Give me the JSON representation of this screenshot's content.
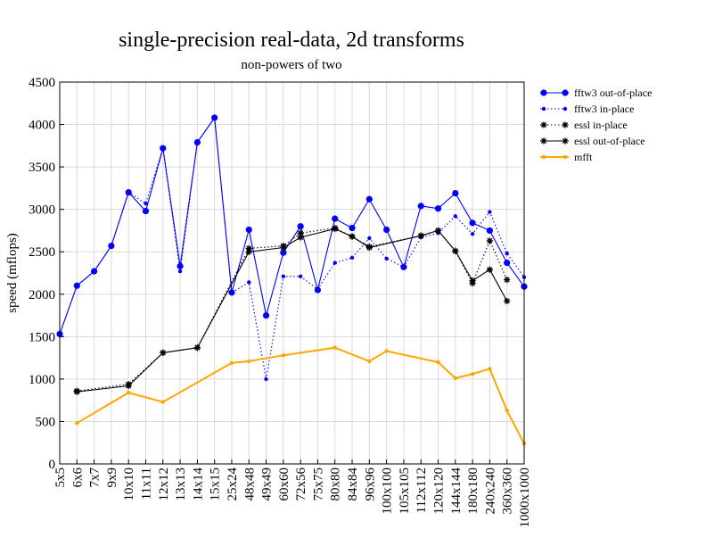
{
  "chart_data": {
    "type": "line",
    "title": "single-precision real-data, 2d transforms",
    "subtitle": "non-powers of two",
    "ylabel": "speed (mflops)",
    "xlabel": "",
    "ylim": [
      0,
      4500
    ],
    "yticks": [
      "0",
      "500",
      "1000",
      "1500",
      "2000",
      "2500",
      "3000",
      "3500",
      "4000",
      "4500"
    ],
    "grid": true,
    "legend_position": "right",
    "categories": [
      "5x5",
      "6x6",
      "7x7",
      "9x9",
      "10x10",
      "11x11",
      "12x12",
      "13x13",
      "14x14",
      "15x15",
      "25x24",
      "48x48",
      "49x49",
      "60x60",
      "72x56",
      "75x75",
      "80x80",
      "84x84",
      "96x96",
      "100x100",
      "105x105",
      "112x112",
      "120x120",
      "144x144",
      "180x180",
      "240x240",
      "360x360",
      "1000x1000"
    ],
    "series": [
      {
        "name": "fftw3 out-of-place",
        "color": "#0000ff",
        "line": "solid",
        "marker": "circle",
        "values": [
          1530,
          2100,
          2270,
          2570,
          3200,
          2980,
          3720,
          2330,
          3790,
          4080,
          2020,
          2760,
          1750,
          2490,
          2800,
          2050,
          2890,
          2780,
          3120,
          2760,
          2320,
          3040,
          3010,
          3190,
          2840,
          2750,
          2370,
          2090
        ]
      },
      {
        "name": "fftw3 in-place",
        "color": "#0000ff",
        "line": "dotted",
        "marker": "dot",
        "values": [
          1530,
          2100,
          2270,
          2570,
          3200,
          3070,
          3720,
          2270,
          3790,
          4080,
          2020,
          2140,
          1000,
          2210,
          2210,
          2060,
          2370,
          2430,
          2660,
          2420,
          2320,
          2670,
          2720,
          2920,
          2710,
          2970,
          2480,
          2200
        ]
      },
      {
        "name": "essl in-place",
        "color": "#000000",
        "line": "dotted",
        "marker": "star",
        "values": [
          null,
          860,
          null,
          null,
          940,
          null,
          1310,
          null,
          1370,
          null,
          null,
          2540,
          null,
          2570,
          2720,
          null,
          2780,
          2680,
          2560,
          null,
          null,
          2690,
          2750,
          2510,
          2130,
          2630,
          2170,
          null
        ]
      },
      {
        "name": "essl out-of-place",
        "color": "#000000",
        "line": "solid",
        "marker": "star",
        "values": [
          null,
          850,
          null,
          null,
          920,
          null,
          1310,
          null,
          1370,
          null,
          null,
          2500,
          null,
          2550,
          2670,
          null,
          2770,
          2680,
          2550,
          null,
          null,
          2690,
          2750,
          2510,
          2160,
          2290,
          1920,
          null
        ]
      },
      {
        "name": "mfft",
        "color": "#ffa500",
        "line": "solid",
        "marker": "dot",
        "values": [
          null,
          480,
          null,
          null,
          840,
          null,
          730,
          null,
          null,
          null,
          1190,
          1210,
          null,
          1280,
          null,
          null,
          1370,
          null,
          1210,
          1330,
          null,
          null,
          1200,
          1010,
          1060,
          1120,
          630,
          240
        ]
      }
    ]
  }
}
